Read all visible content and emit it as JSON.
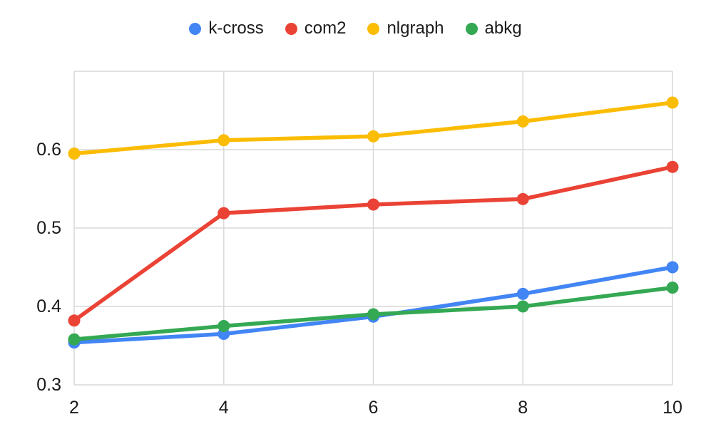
{
  "chart_data": {
    "type": "line",
    "title": "",
    "xlabel": "",
    "ylabel": "",
    "x": [
      2,
      4,
      6,
      8,
      10
    ],
    "series": [
      {
        "name": "k-cross",
        "color": "#4285F4",
        "values": [
          0.354,
          0.365,
          0.387,
          0.416,
          0.45
        ]
      },
      {
        "name": "com2",
        "color": "#EA4335",
        "values": [
          0.382,
          0.519,
          0.53,
          0.537,
          0.578
        ]
      },
      {
        "name": "nlgraph",
        "color": "#FBBC04",
        "values": [
          0.595,
          0.612,
          0.617,
          0.636,
          0.66
        ]
      },
      {
        "name": "abkg",
        "color": "#34A853",
        "values": [
          0.358,
          0.375,
          0.39,
          0.4,
          0.424
        ]
      }
    ],
    "xticks": [
      "2",
      "4",
      "6",
      "8",
      "10"
    ],
    "yticks": [
      "0.3",
      "0.4",
      "0.5",
      "0.6"
    ],
    "ylim": [
      0.3,
      0.7
    ],
    "xlim": [
      2,
      10
    ],
    "grid": true,
    "gridline_color": "#d9d9d9",
    "tick_label_color": "#1a1a1a",
    "background_color": "#ffffff",
    "legend_position": "top"
  }
}
